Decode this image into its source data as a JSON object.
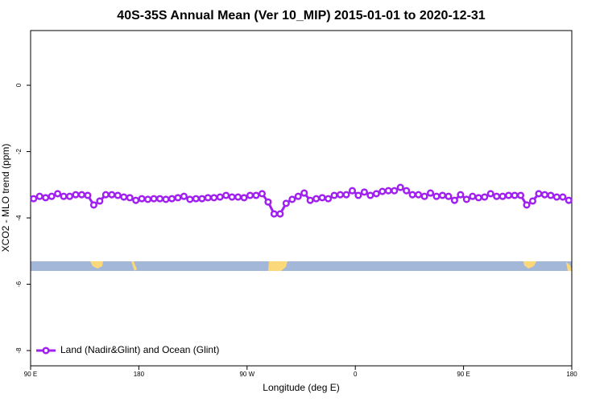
{
  "chart_data": {
    "type": "line",
    "title": "40S-35S Annual Mean (Ver 10_MIP)   2015-01-01 to 2020-12-31",
    "xlabel": "Longitude (deg E)",
    "ylabel": "XCO2 - MLO trend (ppm)",
    "x": [
      92.5,
      97.5,
      102.5,
      107.5,
      112.5,
      117.5,
      122.5,
      127.5,
      132.5,
      137.5,
      142.5,
      147.5,
      152.5,
      157.5,
      162.5,
      167.5,
      172.5,
      177.5,
      182.5,
      187.5,
      192.5,
      197.5,
      202.5,
      207.5,
      212.5,
      217.5,
      222.5,
      227.5,
      232.5,
      237.5,
      242.5,
      247.5,
      252.5,
      257.5,
      262.5,
      267.5,
      272.5,
      277.5,
      282.5,
      287.5,
      292.5,
      297.5,
      302.5,
      307.5,
      312.5,
      317.5,
      322.5,
      327.5,
      332.5,
      337.5,
      342.5,
      347.5,
      352.5,
      357.5,
      362.5,
      367.5,
      372.5,
      377.5,
      382.5,
      387.5,
      392.5,
      397.5,
      402.5,
      407.5,
      412.5,
      417.5,
      422.5,
      427.5,
      432.5,
      437.5,
      442.5,
      447.5,
      452.5,
      457.5,
      462.5,
      467.5,
      472.5,
      477.5,
      482.5,
      487.5,
      492.5,
      497.5,
      502.5,
      507.5,
      512.5,
      517.5,
      522.5,
      527.5,
      532.5,
      537.5
    ],
    "series": [
      {
        "name": "Land (Nadir&Glint) and Ocean (Glint)",
        "color": "#a020f0",
        "values": [
          -3.42,
          -3.35,
          -3.39,
          -3.35,
          -3.27,
          -3.35,
          -3.35,
          -3.3,
          -3.3,
          -3.32,
          -3.61,
          -3.49,
          -3.3,
          -3.3,
          -3.32,
          -3.37,
          -3.39,
          -3.47,
          -3.42,
          -3.44,
          -3.42,
          -3.42,
          -3.44,
          -3.42,
          -3.39,
          -3.35,
          -3.44,
          -3.42,
          -3.42,
          -3.39,
          -3.39,
          -3.37,
          -3.32,
          -3.37,
          -3.37,
          -3.39,
          -3.32,
          -3.32,
          -3.27,
          -3.52,
          -3.88,
          -3.88,
          -3.56,
          -3.44,
          -3.35,
          -3.25,
          -3.47,
          -3.42,
          -3.39,
          -3.42,
          -3.32,
          -3.3,
          -3.3,
          -3.18,
          -3.32,
          -3.22,
          -3.32,
          -3.27,
          -3.2,
          -3.18,
          -3.18,
          -3.08,
          -3.18,
          -3.3,
          -3.3,
          -3.35,
          -3.25,
          -3.35,
          -3.32,
          -3.35,
          -3.47,
          -3.3,
          -3.44,
          -3.35,
          -3.39,
          -3.37,
          -3.27,
          -3.35,
          -3.35,
          -3.32,
          -3.32,
          -3.32,
          -3.61,
          -3.49,
          -3.27,
          -3.3,
          -3.32,
          -3.37,
          -3.37,
          -3.47
        ]
      }
    ],
    "xlim": [
      90,
      540
    ],
    "ylim": [
      -8.46,
      1.65
    ],
    "xticks": [
      {
        "value": 90,
        "label": "90 E"
      },
      {
        "value": 180,
        "label": "180"
      },
      {
        "value": 270,
        "label": "90 W"
      },
      {
        "value": 360,
        "label": "0"
      },
      {
        "value": 450,
        "label": "90 E"
      },
      {
        "value": 540,
        "label": "180"
      }
    ],
    "yticks": [
      0,
      -2,
      -4,
      -6,
      -8
    ],
    "legend": "lower left"
  }
}
